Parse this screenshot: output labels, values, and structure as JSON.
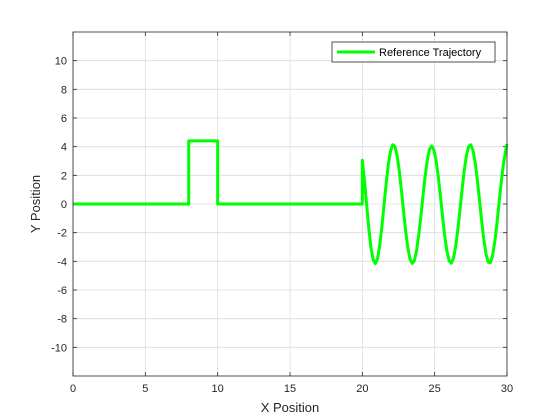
{
  "chart_data": {
    "type": "line",
    "xlabel": "X Position",
    "ylabel": "Y Position",
    "xlim": [
      0,
      30
    ],
    "ylim": [
      -12,
      12
    ],
    "xticks": [
      0,
      5,
      10,
      15,
      20,
      25,
      30
    ],
    "yticks": [
      -10,
      -8,
      -6,
      -4,
      -2,
      0,
      2,
      4,
      6,
      8,
      10
    ],
    "grid": true,
    "legend_position": "top-right",
    "series": [
      {
        "name": "Reference Trajectory",
        "color": "#00ff00",
        "x": [
          0,
          8,
          8,
          10,
          10,
          20,
          20,
          20.15,
          20.3,
          20.45,
          20.6,
          20.75,
          20.9,
          21.05,
          21.2,
          21.35,
          21.5,
          21.65,
          21.8,
          21.95,
          22.1,
          22.25,
          22.4,
          22.55,
          22.7,
          22.85,
          23.0,
          23.15,
          23.3,
          23.45,
          23.6,
          23.75,
          23.9,
          24.05,
          24.2,
          24.35,
          24.5,
          24.65,
          24.8,
          24.95,
          25.1,
          25.25,
          25.4,
          25.55,
          25.7,
          25.85,
          26.0,
          26.15,
          26.3,
          26.45,
          26.6,
          26.75,
          26.9,
          27.05,
          27.2,
          27.35,
          27.5,
          27.65,
          27.8,
          27.95,
          28.1,
          28.25,
          28.4,
          28.55,
          28.7,
          28.85,
          29.0,
          29.15,
          29.3,
          29.45,
          29.6,
          29.75,
          29.9,
          30.0
        ],
        "y": [
          0,
          0,
          4.4,
          4.4,
          0,
          0,
          3.05,
          1.62,
          -0.06,
          -1.73,
          -3.07,
          -3.9,
          -4.16,
          -3.81,
          -2.91,
          -1.59,
          -0.06,
          1.46,
          2.77,
          3.7,
          4.13,
          4.03,
          3.4,
          2.34,
          0.99,
          -0.5,
          -1.93,
          -3.09,
          -3.86,
          -4.15,
          -3.94,
          -3.25,
          -2.16,
          -0.82,
          0.63,
          2.01,
          3.12,
          3.83,
          4.05,
          3.76,
          3.02,
          1.9,
          0.53,
          -0.92,
          -2.26,
          -3.32,
          -3.97,
          -4.13,
          -3.79,
          -2.98,
          -1.8,
          -0.4,
          1.06,
          2.38,
          3.41,
          4.02,
          4.13,
          3.74,
          2.9,
          1.68,
          0.26,
          -1.18,
          -2.49,
          -3.49,
          -4.06,
          -4.1,
          -3.61,
          -2.67,
          -1.4,
          0.06,
          1.5,
          2.76,
          3.7,
          4.18
        ]
      }
    ]
  }
}
